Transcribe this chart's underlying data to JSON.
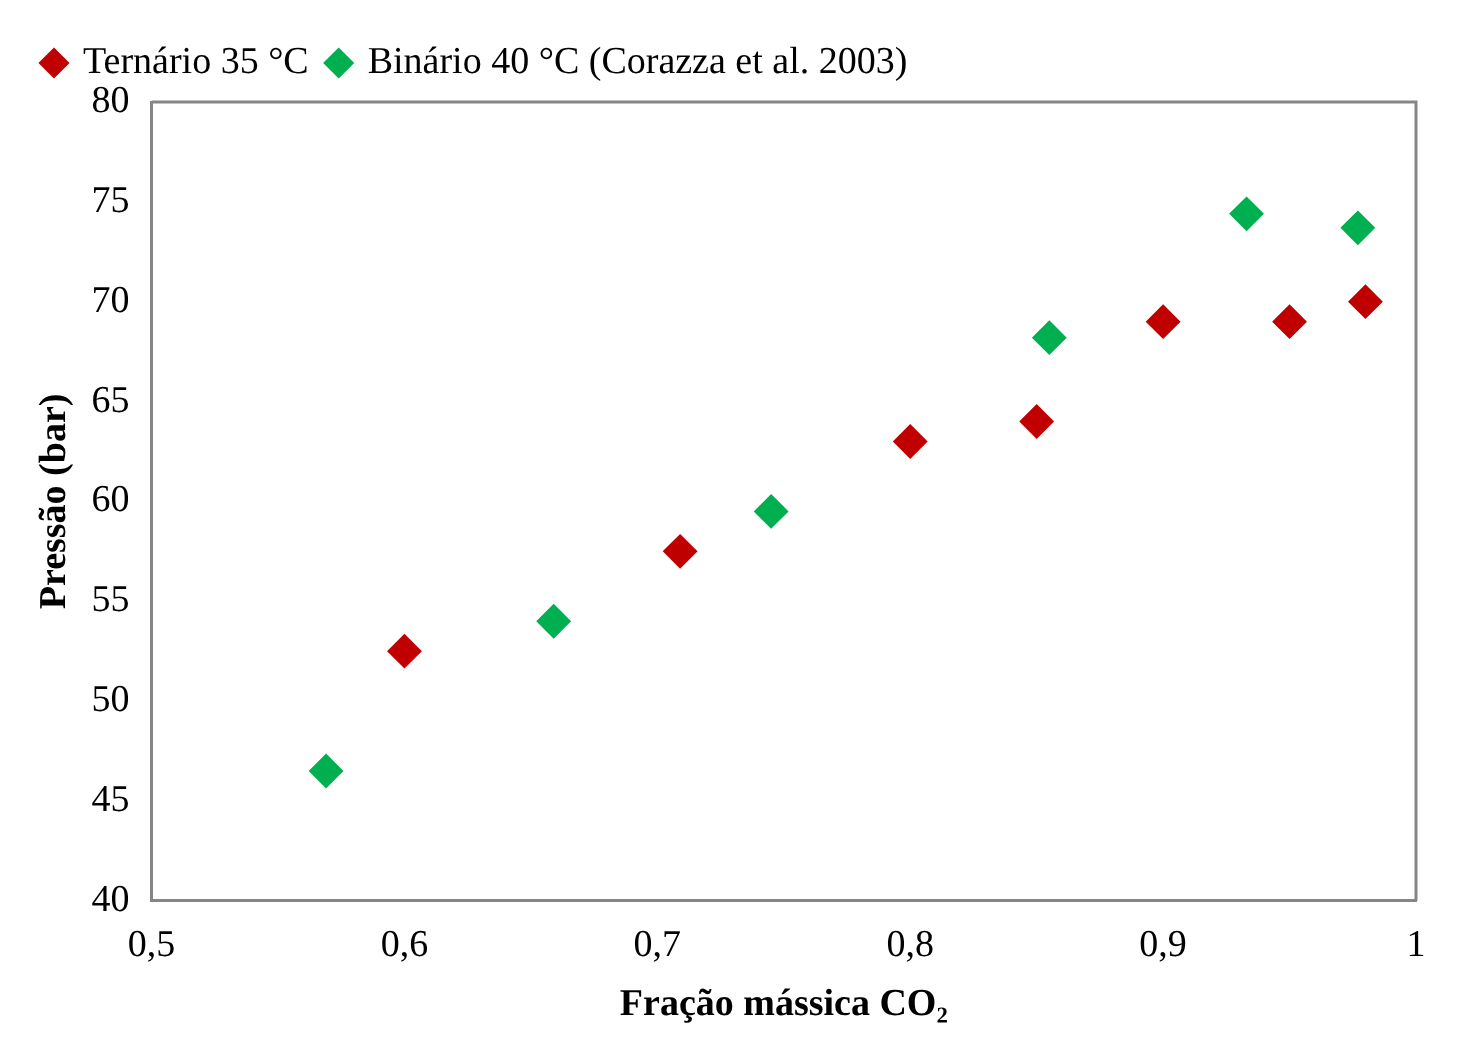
{
  "chart_data": {
    "type": "scatter",
    "xlabel": "Fração mássica CO₂",
    "ylabel": "Pressão (bar)",
    "xlim": [
      0.5,
      1
    ],
    "xticks": [
      {
        "value": 0.5,
        "label": "0,5"
      },
      {
        "value": 0.6,
        "label": "0,6"
      },
      {
        "value": 0.7,
        "label": "0,7"
      },
      {
        "value": 0.8,
        "label": "0,8"
      },
      {
        "value": 0.9,
        "label": "0,9"
      },
      {
        "value": 1,
        "label": "1"
      }
    ],
    "ylim": [
      40,
      80
    ],
    "yticks": [
      40,
      45,
      50,
      55,
      60,
      65,
      70,
      75,
      80
    ],
    "grid": false,
    "legend": "top left",
    "marker": "diamond",
    "series": [
      {
        "name": "Ternário 35 °C",
        "color": "#c00000",
        "x": [
          0.6,
          0.709,
          0.8,
          0.85,
          0.9,
          0.95,
          0.98
        ],
        "values": [
          52.5,
          57.5,
          63,
          64,
          69,
          69,
          70
        ]
      },
      {
        "name": "Binário 40 °C (Corazza et al. 2003)",
        "color": "#00b050",
        "x": [
          0.569,
          0.659,
          0.745,
          0.855,
          0.933,
          0.977
        ],
        "values": [
          46.5,
          54,
          59.5,
          68.2,
          74.4,
          73.7
        ]
      }
    ]
  }
}
